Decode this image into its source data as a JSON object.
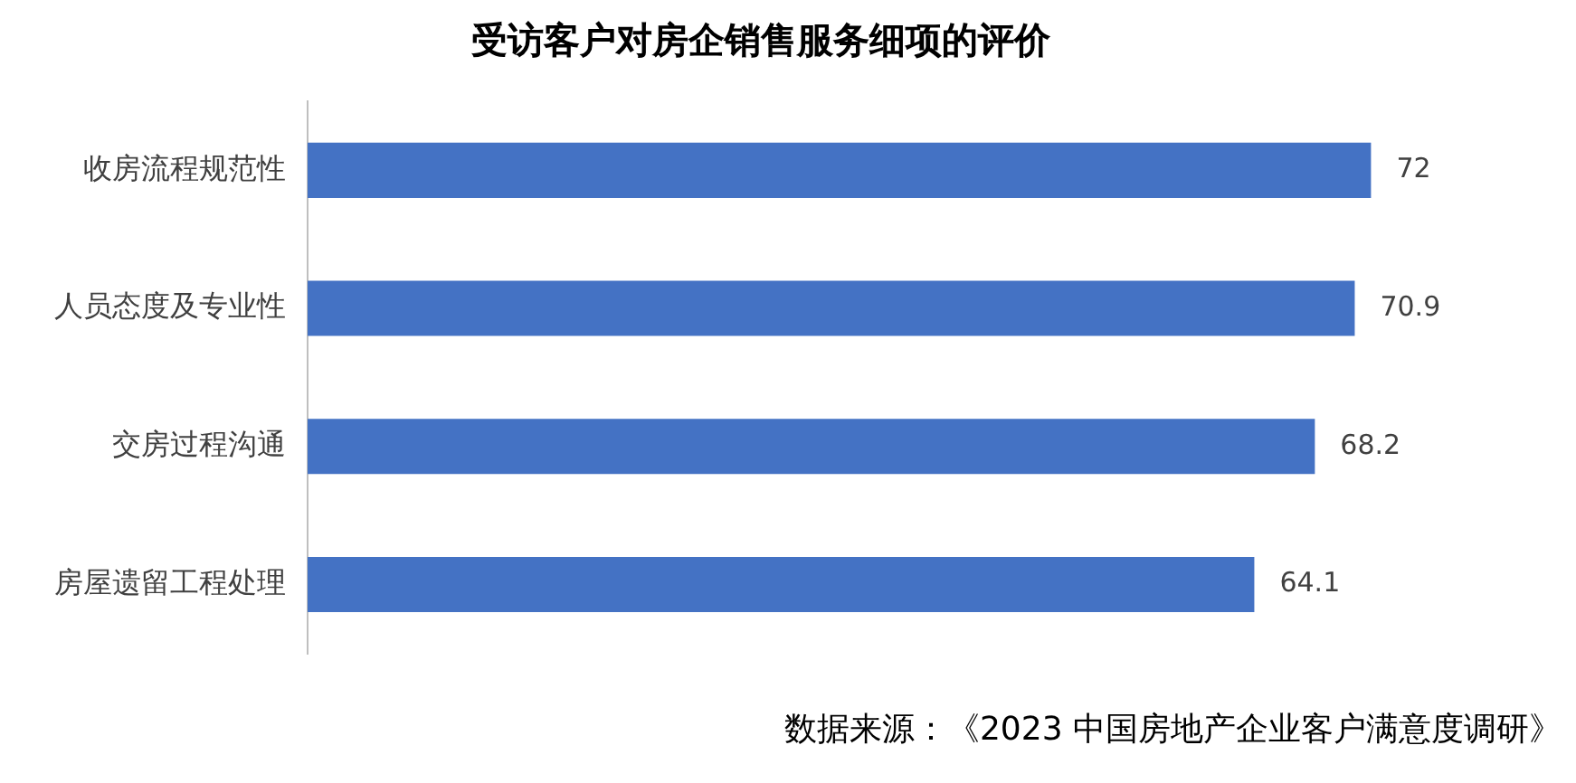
{
  "chart_data": {
    "type": "bar",
    "orientation": "horizontal",
    "title": "受访客户对房企销售服务细项的评价",
    "categories": [
      "收房流程规范性",
      "人员态度及专业性",
      "交房过程沟通",
      "房屋遗留工程处理"
    ],
    "values": [
      72,
      70.9,
      68.2,
      64.1
    ],
    "color": "#4472c4",
    "tick_labels": "y",
    "grid": false,
    "data_labels": true,
    "legend": false,
    "annotations": [
      "数据来源：《2023 中国房地产企业客户满意度调研》"
    ]
  }
}
